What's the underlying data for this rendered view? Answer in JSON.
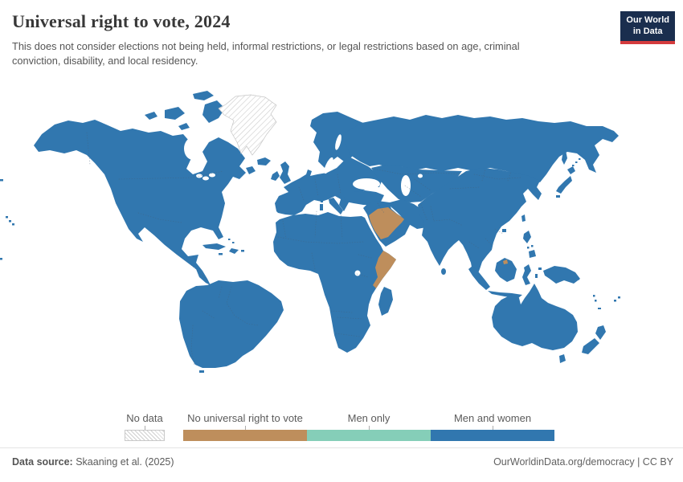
{
  "header": {
    "title": "Universal right to vote, 2024",
    "subtitle": "This does not consider elections not being held, informal restrictions, or legal restrictions based on age, criminal conviction, disability, and local residency."
  },
  "logo": {
    "line1": "Our World",
    "line2": "in Data",
    "bg_color": "#1a2e4e",
    "accent_color": "#d43b3d"
  },
  "legend": {
    "no_data": {
      "label": "No data"
    },
    "items": [
      {
        "label": "No universal right to vote",
        "color": "#be8e5c"
      },
      {
        "label": "Men only",
        "color": "#85ceb8"
      },
      {
        "label": "Men and women",
        "color": "#3177af"
      }
    ]
  },
  "footer": {
    "source_label": "Data source:",
    "source_value": " Skaaning et al. (2025)",
    "right_text": "OurWorldinData.org/democracy | CC BY"
  },
  "chart_data": {
    "type": "choropleth_map",
    "title": "Universal right to vote",
    "year": 2024,
    "categories": [
      "No data",
      "No universal right to vote",
      "Men only",
      "Men and women"
    ],
    "colors": {
      "No data": "white-with-gray-hatching",
      "No universal right to vote": "#be8e5c",
      "Men only": "#85ceb8",
      "Men and women": "#3177af"
    },
    "country_values": {
      "Greenland": "No data",
      "Saudi Arabia": "No universal right to vote",
      "United Arab Emirates": "No universal right to vote",
      "Somalia": "No universal right to vote",
      "Brunei": "No universal right to vote",
      "All other countries shown": "Men and women"
    },
    "legend_position": "bottom",
    "projection": "world"
  }
}
